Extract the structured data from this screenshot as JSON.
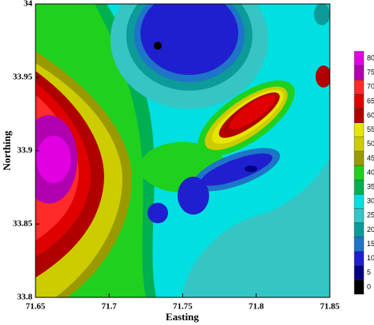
{
  "chart_data": {
    "type": "contour",
    "x_label": "Easting",
    "y_label": "Northing",
    "xlim": [
      71.65,
      71.85
    ],
    "xticks": [
      71.65,
      71.7,
      71.75,
      71.8,
      71.85
    ],
    "ylim": [
      33.8,
      34
    ],
    "yticks": [
      33.8,
      33.85,
      33.9,
      33.95,
      34
    ],
    "colorbar": {
      "levels": [
        0,
        5,
        10,
        15,
        20,
        25,
        30,
        35,
        40,
        45,
        50,
        55,
        60,
        65,
        70,
        75,
        80
      ],
      "colors": [
        "#000000",
        "#000080",
        "#1f1fd0",
        "#1e74c8",
        "#0d9a9a",
        "#35c5c5",
        "#00e0e0",
        "#00b050",
        "#1fd01f",
        "#9a9a00",
        "#cccc00",
        "#e6e600",
        "#b00000",
        "#e00000",
        "#ff2a2a",
        "#b000b0",
        "#e000e0"
      ]
    }
  }
}
